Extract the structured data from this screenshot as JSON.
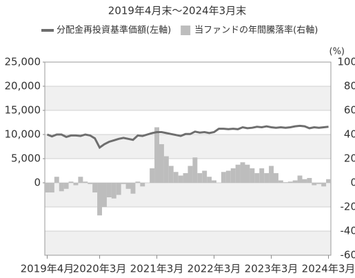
{
  "chart_data": {
    "type": "bar-line",
    "title": "2019年4月末～2024年3月末",
    "y2_unit": "(%)",
    "categories": [
      "2019年4月",
      null,
      null,
      null,
      null,
      null,
      null,
      null,
      null,
      null,
      null,
      "2020年3月",
      null,
      null,
      null,
      null,
      null,
      null,
      null,
      null,
      null,
      null,
      null,
      "2021年3月",
      null,
      null,
      null,
      null,
      null,
      null,
      null,
      null,
      null,
      null,
      null,
      "2022年3月",
      null,
      null,
      null,
      null,
      null,
      null,
      null,
      null,
      null,
      null,
      null,
      "2023年3月",
      null,
      null,
      null,
      null,
      null,
      null,
      null,
      null,
      null,
      null,
      null,
      "2024年3月"
    ],
    "series": [
      {
        "name": "分配金再投資基準価額(左軸)",
        "color": "#6e6e6e",
        "kind": "line",
        "axis": "y",
        "values": [
          10000,
          9600,
          10000,
          10000,
          9500,
          9800,
          9800,
          9700,
          10000,
          9800,
          9200,
          7300,
          8000,
          8500,
          8800,
          9100,
          9300,
          9100,
          8900,
          9800,
          9700,
          10000,
          10300,
          10500,
          10500,
          10300,
          10100,
          9900,
          9700,
          10100,
          10100,
          10600,
          10400,
          10500,
          10300,
          10500,
          11200,
          11200,
          11100,
          11200,
          11100,
          11500,
          11300,
          11400,
          11600,
          11500,
          11700,
          11500,
          11400,
          11500,
          11400,
          11500,
          11700,
          11800,
          11700,
          11300,
          11500,
          11400,
          11500,
          11600
        ]
      },
      {
        "name": "当ファンドの年間騰落率(右軸)",
        "color": "#bdbdbd",
        "kind": "bar",
        "axis": "y2",
        "values": [
          -8,
          -8,
          5,
          -7,
          -5,
          1,
          -2,
          5,
          1,
          -1,
          -8,
          -27,
          -20,
          -12,
          -13,
          -10,
          -1,
          -5,
          -9,
          1,
          -3,
          0,
          12,
          46,
          32,
          22,
          14,
          9,
          6,
          8,
          14,
          21,
          8,
          10,
          5,
          2,
          0,
          9,
          10,
          12,
          15,
          17,
          15,
          12,
          8,
          12,
          8,
          14,
          8,
          2,
          0.5,
          1,
          2,
          6,
          3,
          4,
          -2,
          -1,
          -3,
          3
        ]
      }
    ],
    "ylim": [
      -15000,
      25000
    ],
    "yticks": [
      0,
      {
        "value": 5000,
        "label": "5,000"
      },
      {
        "value": 10000,
        "label": "10,000"
      },
      {
        "value": 15000,
        "label": "15,000"
      },
      {
        "value": 20000,
        "label": "20,000"
      },
      {
        "value": 25000,
        "label": "25,000"
      }
    ],
    "y2lim": [
      -60,
      100
    ],
    "y2ticks": [
      -60,
      -40,
      -20,
      0,
      20,
      40,
      60,
      80,
      100
    ],
    "grid": true
  }
}
